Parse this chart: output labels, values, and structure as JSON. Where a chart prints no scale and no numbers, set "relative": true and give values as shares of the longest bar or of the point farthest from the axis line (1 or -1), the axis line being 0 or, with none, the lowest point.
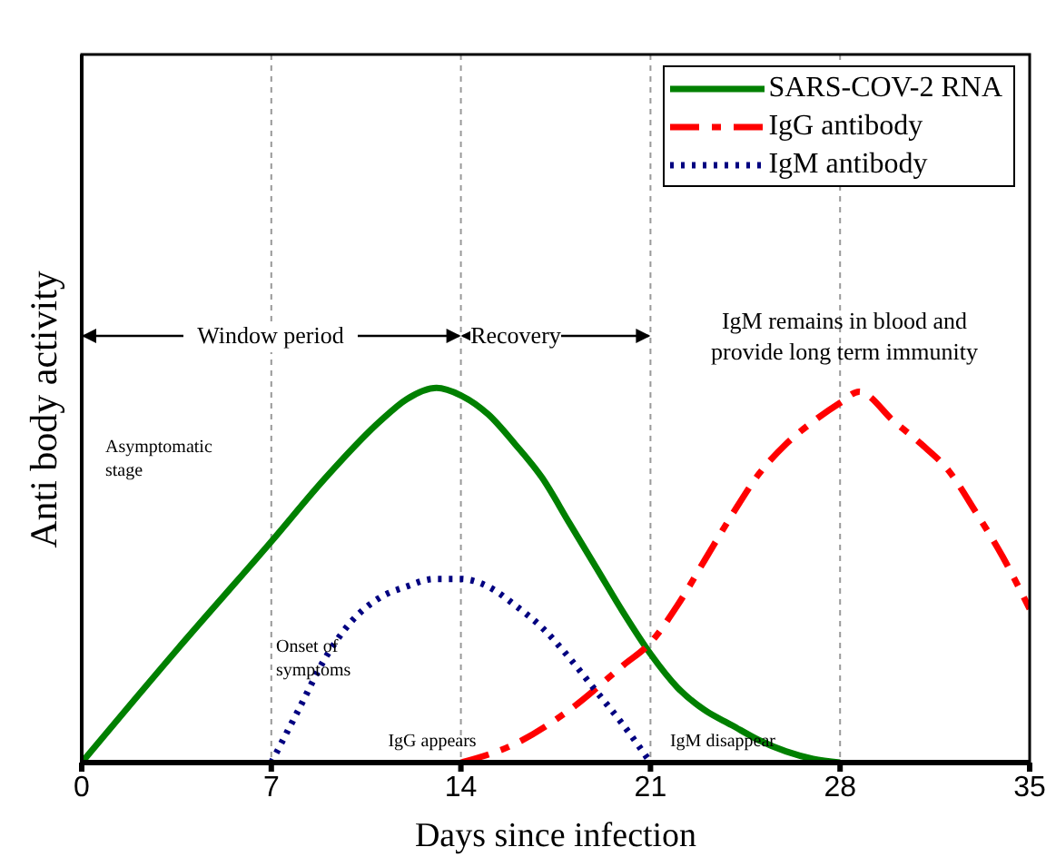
{
  "chart_data": {
    "type": "line",
    "relative": true,
    "xlabel": "Days since infection",
    "ylabel": "Anti body activity",
    "xlim": [
      0,
      35
    ],
    "xticks": [
      0,
      7,
      14,
      21,
      28,
      35
    ],
    "grid": "x",
    "legend": "top right",
    "marker": "none",
    "series": [
      {
        "name": "SARS-COV-2 RNA",
        "color": "#008000",
        "line_style": "solid",
        "x": [
          0,
          3.5,
          7,
          9,
          11,
          12,
          13.1,
          14,
          15,
          16,
          17,
          18,
          19,
          20,
          21,
          22,
          23,
          24,
          25,
          26,
          27,
          28
        ],
        "values": [
          0,
          0.3,
          0.59,
          0.76,
          0.91,
          0.97,
          1,
          0.98,
          0.93,
          0.85,
          0.76,
          0.64,
          0.52,
          0.4,
          0.29,
          0.2,
          0.14,
          0.1,
          0.06,
          0.03,
          0.01,
          0
        ]
      },
      {
        "name": "IgG antibody",
        "color": "#ff0000",
        "line_style": "dashed",
        "x": [
          14,
          16,
          18,
          20,
          21,
          22,
          23,
          24,
          25,
          26,
          27,
          28,
          28.7,
          30,
          31,
          32,
          33,
          34,
          35
        ],
        "values": [
          0,
          0.05,
          0.14,
          0.26,
          0.32,
          0.42,
          0.54,
          0.66,
          0.77,
          0.85,
          0.91,
          0.96,
          0.99,
          0.91,
          0.85,
          0.78,
          0.67,
          0.55,
          0.41
        ]
      },
      {
        "name": "IgM antibody",
        "color": "#000080",
        "line_style": "dotted",
        "x": [
          7,
          8,
          9,
          10,
          11,
          12,
          13,
          14,
          15,
          16,
          17,
          18,
          19,
          20,
          21
        ],
        "values": [
          0,
          0.14,
          0.28,
          0.38,
          0.44,
          0.47,
          0.49,
          0.49,
          0.47,
          0.42,
          0.36,
          0.28,
          0.19,
          0.1,
          0
        ]
      }
    ],
    "annotations": [
      "Window period",
      "Recovery",
      "IgM remains in blood and\nprovide long term immunity",
      "Asymptomatic stage",
      "Onset of symptoms",
      "IgG appears",
      "IgM disappear"
    ]
  }
}
